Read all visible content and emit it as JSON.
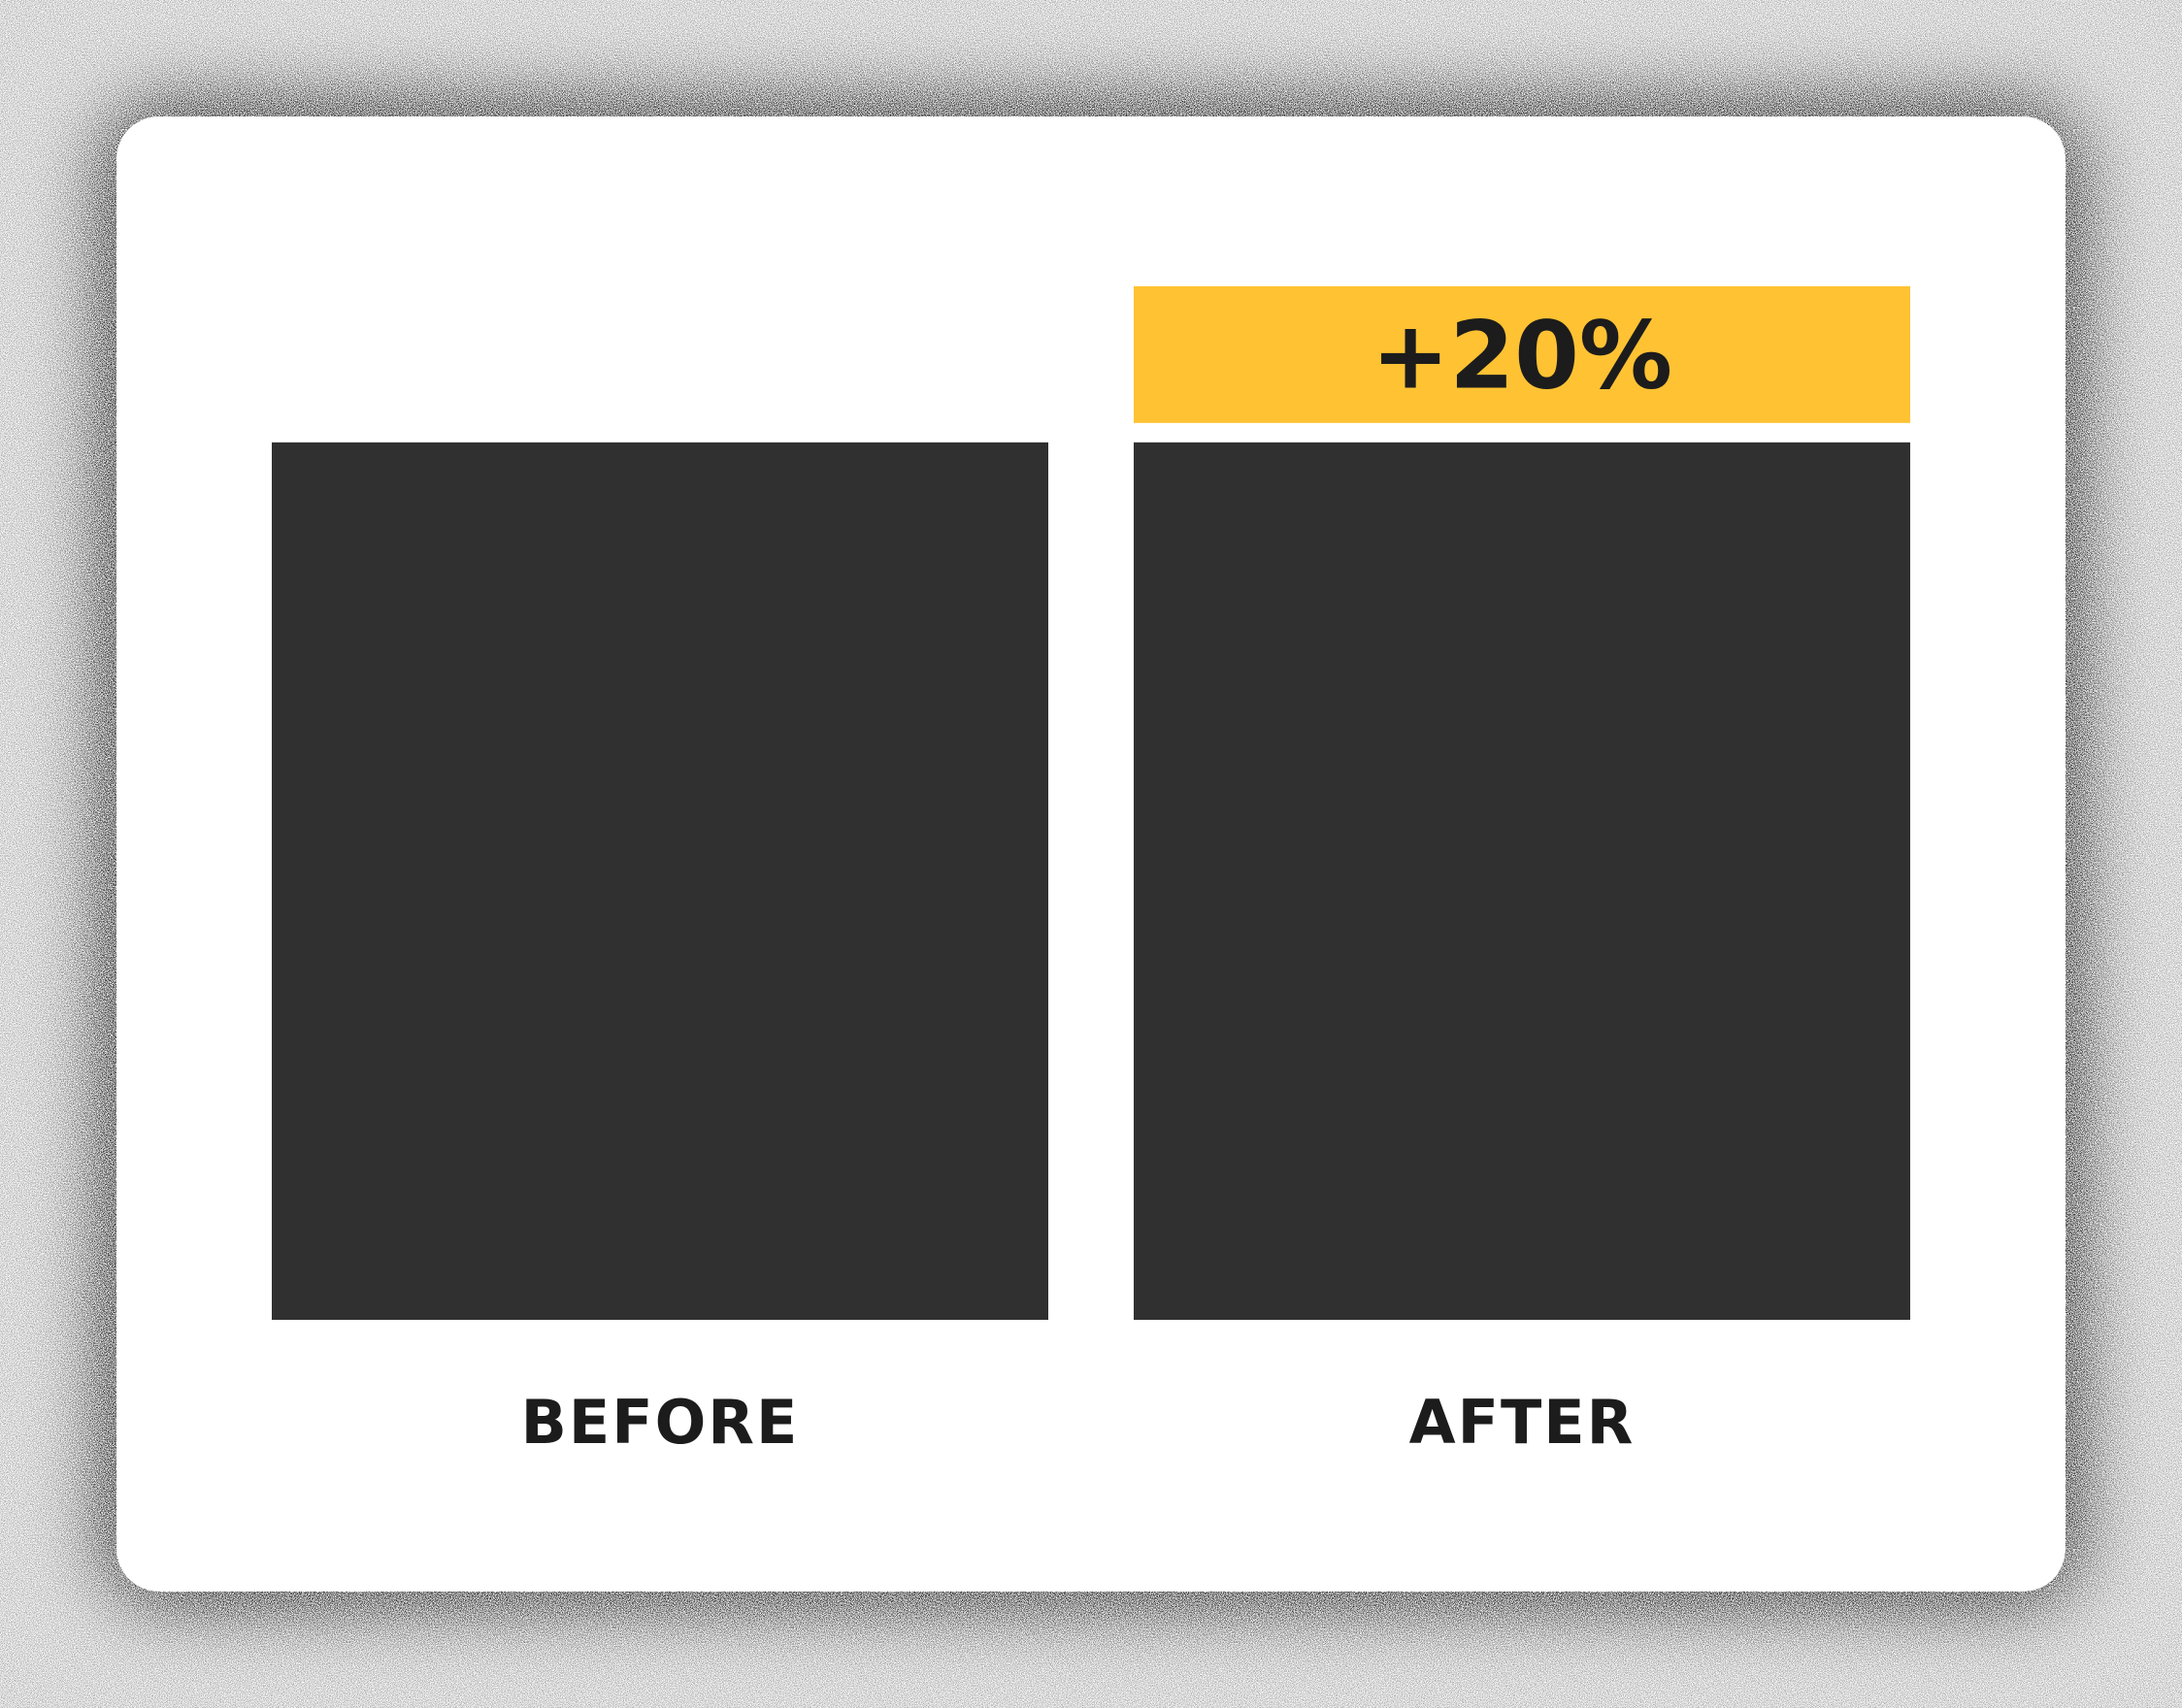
{
  "colors": {
    "base_bar": "#303030",
    "increase_segment": "#FFC233",
    "text": "#1c1c1c",
    "card": "#ffffff",
    "halo": "#000000"
  },
  "chart_data": {
    "type": "bar",
    "categories": [
      "BEFORE",
      "AFTER"
    ],
    "values": [
      100,
      120
    ],
    "series": [
      {
        "values": [
          100,
          100
        ],
        "color": "#303030"
      },
      {
        "values": [
          0,
          20
        ],
        "color": "#FFC233",
        "labels": [
          "",
          "+20%"
        ]
      }
    ],
    "title": "",
    "xlabel": "",
    "ylabel": "",
    "ylim": [
      0,
      120
    ],
    "grid": false,
    "legend": "none"
  }
}
